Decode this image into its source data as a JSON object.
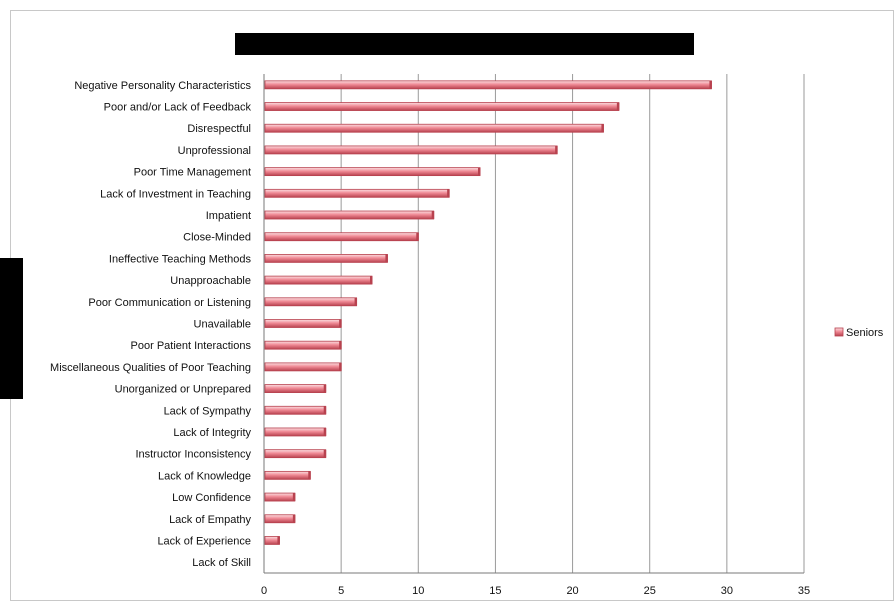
{
  "chart_data": {
    "type": "bar",
    "orientation": "horizontal",
    "title": "",
    "xlabel": "",
    "ylabel": "",
    "xlim": [
      0,
      35
    ],
    "x_ticks": [
      0,
      5,
      10,
      15,
      20,
      25,
      30,
      35
    ],
    "grid": "vertical",
    "legend_position": "right",
    "categories": [
      "Negative Personality Characteristics",
      "Poor and/or Lack of Feedback",
      "Disrespectful",
      "Unprofessional",
      "Poor Time Management",
      "Lack of Investment in Teaching",
      "Impatient",
      "Close-Minded",
      "Ineffective Teaching Methods",
      "Unapproachable",
      "Poor Communication or Listening",
      "Unavailable",
      "Poor Patient Interactions",
      "Miscellaneous Qualities of Poor Teaching",
      "Unorganized or Unprepared",
      "Lack of Sympathy",
      "Lack of Integrity",
      "Instructor Inconsistency",
      "Lack of Knowledge",
      "Low Confidence",
      "Lack of Empathy",
      "Lack of Experience",
      "Lack of Skill"
    ],
    "series": [
      {
        "name": "Seniors",
        "color": "#e8707c",
        "values": [
          29,
          23,
          22,
          19,
          14,
          12,
          11,
          10,
          8,
          7,
          6,
          5,
          5,
          5,
          4,
          4,
          4,
          4,
          3,
          2,
          2,
          1,
          0
        ]
      }
    ]
  },
  "colors": {
    "bar_light": "#f6c6cb",
    "bar_dark": "#b8424f",
    "grid": "#9a9a9a",
    "axis": "#7a7a7a"
  }
}
